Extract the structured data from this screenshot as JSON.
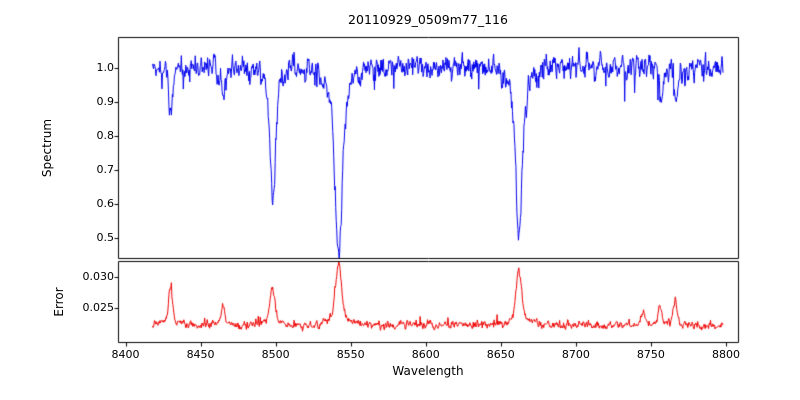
{
  "chart_data": {
    "type": "line",
    "title": "20110929_0509m77_116",
    "xlabel": "Wavelength",
    "xlim": [
      8395,
      8808
    ],
    "x_range": [
      8418,
      8798
    ],
    "xticks": [
      8400,
      8450,
      8500,
      8550,
      8600,
      8650,
      8700,
      8750,
      8800
    ],
    "grid": false,
    "legend": "none",
    "panels": [
      {
        "name": "spectrum",
        "ylabel": "Spectrum",
        "line_color": "#0000ee",
        "ylim": [
          0.44,
          1.09
        ],
        "ytick_labels": [
          "0.5",
          "0.6",
          "0.7",
          "0.8",
          "0.9",
          "1.0"
        ],
        "baseline": 1.0,
        "noise_sigma": 0.016,
        "features": [
          {
            "type": "absorption",
            "center": 8430,
            "depth": 0.13,
            "width": 1.2
          },
          {
            "type": "absorption",
            "center": 8465,
            "depth": 0.08,
            "width": 1.0
          },
          {
            "type": "absorption",
            "center": 8498,
            "depth": 0.38,
            "width": 1.7
          },
          {
            "type": "absorption",
            "center": 8542,
            "depth": 0.53,
            "width": 2.4
          },
          {
            "type": "absorption",
            "center": 8662,
            "depth": 0.49,
            "width": 2.0
          },
          {
            "type": "absorption",
            "center": 8757,
            "depth": 0.1,
            "width": 1.0
          },
          {
            "type": "absorption",
            "center": 8767,
            "depth": 0.11,
            "width": 1.0
          }
        ]
      },
      {
        "name": "error",
        "ylabel": "Error",
        "line_color": "#ee0000",
        "ylim": [
          0.0195,
          0.0325
        ],
        "ytick_labels": [
          "0.025",
          "0.030"
        ],
        "baseline": 0.0222,
        "noise_sigma": 0.00028,
        "features": [
          {
            "type": "peak",
            "center": 8430,
            "height": 0.006,
            "width": 1.2
          },
          {
            "type": "peak",
            "center": 8465,
            "height": 0.0032,
            "width": 1.0
          },
          {
            "type": "peak",
            "center": 8498,
            "height": 0.0058,
            "width": 1.6
          },
          {
            "type": "peak",
            "center": 8542,
            "height": 0.0098,
            "width": 2.0
          },
          {
            "type": "peak",
            "center": 8662,
            "height": 0.0088,
            "width": 1.8
          },
          {
            "type": "peak",
            "center": 8745,
            "height": 0.0022,
            "width": 1.1
          },
          {
            "type": "peak",
            "center": 8756,
            "height": 0.003,
            "width": 1.2
          },
          {
            "type": "peak",
            "center": 8766,
            "height": 0.0042,
            "width": 1.1
          }
        ]
      }
    ]
  }
}
